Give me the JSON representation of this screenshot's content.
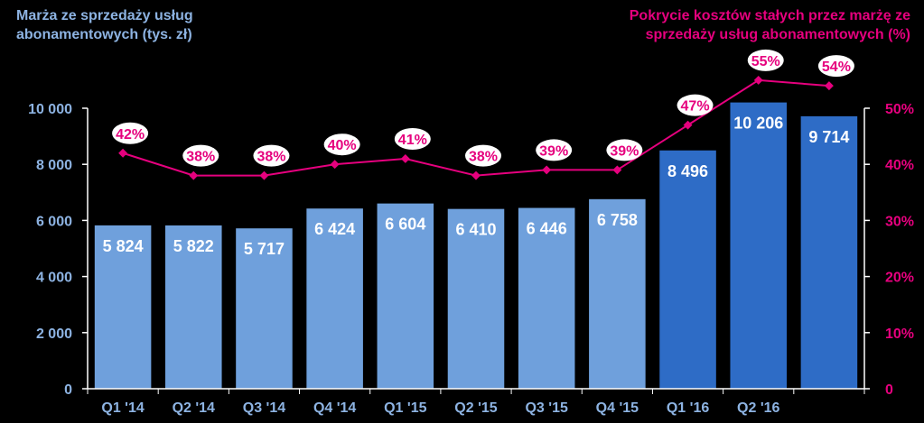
{
  "chart_data": {
    "type": "bar",
    "categories": [
      "Q1 '14",
      "Q2 '14",
      "Q3 '14",
      "Q4 '14",
      "Q1 '15",
      "Q2 '15",
      "Q3 '15",
      "Q4 '15",
      "Q1 '16",
      "Q2 '16",
      ""
    ],
    "left_axis_title": [
      "Marża ze sprzedaży usług",
      "abonamentowych  (tys. zł)"
    ],
    "right_axis_title": [
      "Pokrycie kosztów stałych przez marżę ze",
      "sprzedaży usług abonamentowych  (%)"
    ],
    "ylim": [
      0,
      10000
    ],
    "y2lim": [
      0,
      50
    ],
    "y_ticks": [
      0,
      2000,
      4000,
      6000,
      8000,
      10000
    ],
    "y_tick_labels": [
      "0",
      "2 000",
      "4 000",
      "6 000",
      "8 000",
      "10 000"
    ],
    "y2_ticks": [
      0,
      10,
      20,
      30,
      40,
      50
    ],
    "y2_tick_labels": [
      "0",
      "10%",
      "20%",
      "30%",
      "40%",
      "50%"
    ],
    "bars": {
      "values": [
        5824,
        5822,
        5717,
        6424,
        6604,
        6410,
        6446,
        6758,
        8496,
        10206,
        9714
      ],
      "labels": [
        "5 824",
        "5 822",
        "5 717",
        "6 424",
        "6 604",
        "6 410",
        "6 446",
        "6 758",
        "8 496",
        "10 206",
        "9 714"
      ],
      "colors": [
        "#6FA0DC",
        "#6FA0DC",
        "#6FA0DC",
        "#6FA0DC",
        "#6FA0DC",
        "#6FA0DC",
        "#6FA0DC",
        "#6FA0DC",
        "#2E6CC6",
        "#2E6CC6",
        "#2E6CC6"
      ]
    },
    "line": {
      "values": [
        42,
        38,
        38,
        40,
        41,
        38,
        39,
        39,
        47,
        55,
        54
      ],
      "labels": [
        "42%",
        "38%",
        "38%",
        "40%",
        "41%",
        "38%",
        "39%",
        "39%",
        "47%",
        "55%",
        "54%"
      ],
      "color": "#E6007E"
    },
    "legend": "none",
    "grid": false
  }
}
